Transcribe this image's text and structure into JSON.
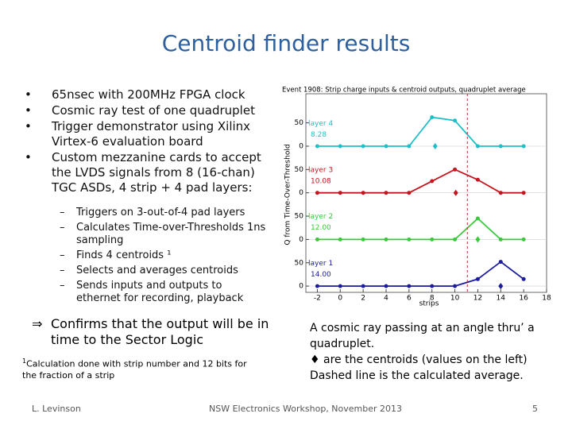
{
  "title": "Centroid finder results",
  "bullets": [
    "65nsec with 200MHz FPGA clock",
    "Cosmic ray test of one quadruplet",
    "Trigger demonstrator using Xilinx Virtex-6 evaluation board",
    "Custom mezzanine cards to accept the LVDS signals from 8 (16-chan) TGC ASDs, 4 strip + 4 pad layers:"
  ],
  "sub_bullets": [
    "Triggers on 3-out-of-4 pad layers",
    "Calculates Time-over-Thresholds 1ns sampling",
    "Finds 4 centroids ¹",
    "Selects and averages centroids",
    "Sends inputs and outputs to ethernet for recording, playback"
  ],
  "conclusion_symbol": "⇒",
  "conclusion": "Confirms that the output will be in time to the Sector Logic",
  "footnote": {
    "mark": "1",
    "text": "Calculation done with strip number and 12 bits for the fraction of a strip"
  },
  "caption": [
    "A cosmic ray passing at an angle thru’ a quadruplet.",
    "♦ are the centroids (values on the left)",
    "Dashed line is the calculated average."
  ],
  "footer": {
    "author": "L. Levinson",
    "event": "NSW Electronics Workshop, November 2013",
    "page": "5"
  },
  "chart_data": {
    "type": "line",
    "title": "Event 1908: Strip charge inputs & centroid outputs, quadruplet average",
    "x_label": "strips",
    "y_label": "Q from Time-Over-Threshold",
    "xlim": [
      -3,
      18
    ],
    "xticks": [
      -2,
      0,
      2,
      4,
      6,
      8,
      10,
      12,
      14,
      16,
      18
    ],
    "ylim": [
      0,
      100
    ],
    "yticks": [
      0,
      50
    ],
    "x": [
      -2,
      0,
      2,
      4,
      6,
      8,
      10,
      12,
      14,
      16
    ],
    "series": [
      {
        "name": "layer 4",
        "color": "#1fbfc8",
        "values": [
          0,
          0,
          0,
          0,
          0,
          62,
          55,
          0,
          0,
          0
        ],
        "centroid": 8.28,
        "centroid_label": "8.28"
      },
      {
        "name": "layer 3",
        "color": "#c8141e",
        "values": [
          0,
          0,
          0,
          0,
          0,
          25,
          50,
          28,
          0,
          0
        ],
        "centroid": 10.08,
        "centroid_label": "10.08"
      },
      {
        "name": "layer 2",
        "color": "#3cc83c",
        "values": [
          0,
          0,
          0,
          0,
          0,
          0,
          0,
          45,
          0,
          0
        ],
        "centroid": 12,
        "centroid_label": "12.00"
      },
      {
        "name": "layer 1",
        "color": "#1c1c9c",
        "values": [
          0,
          0,
          0,
          0,
          0,
          0,
          0,
          15,
          52,
          15
        ],
        "centroid": 14,
        "centroid_label": "14.00"
      }
    ],
    "average": 11.09,
    "average_color": "#b03030"
  }
}
